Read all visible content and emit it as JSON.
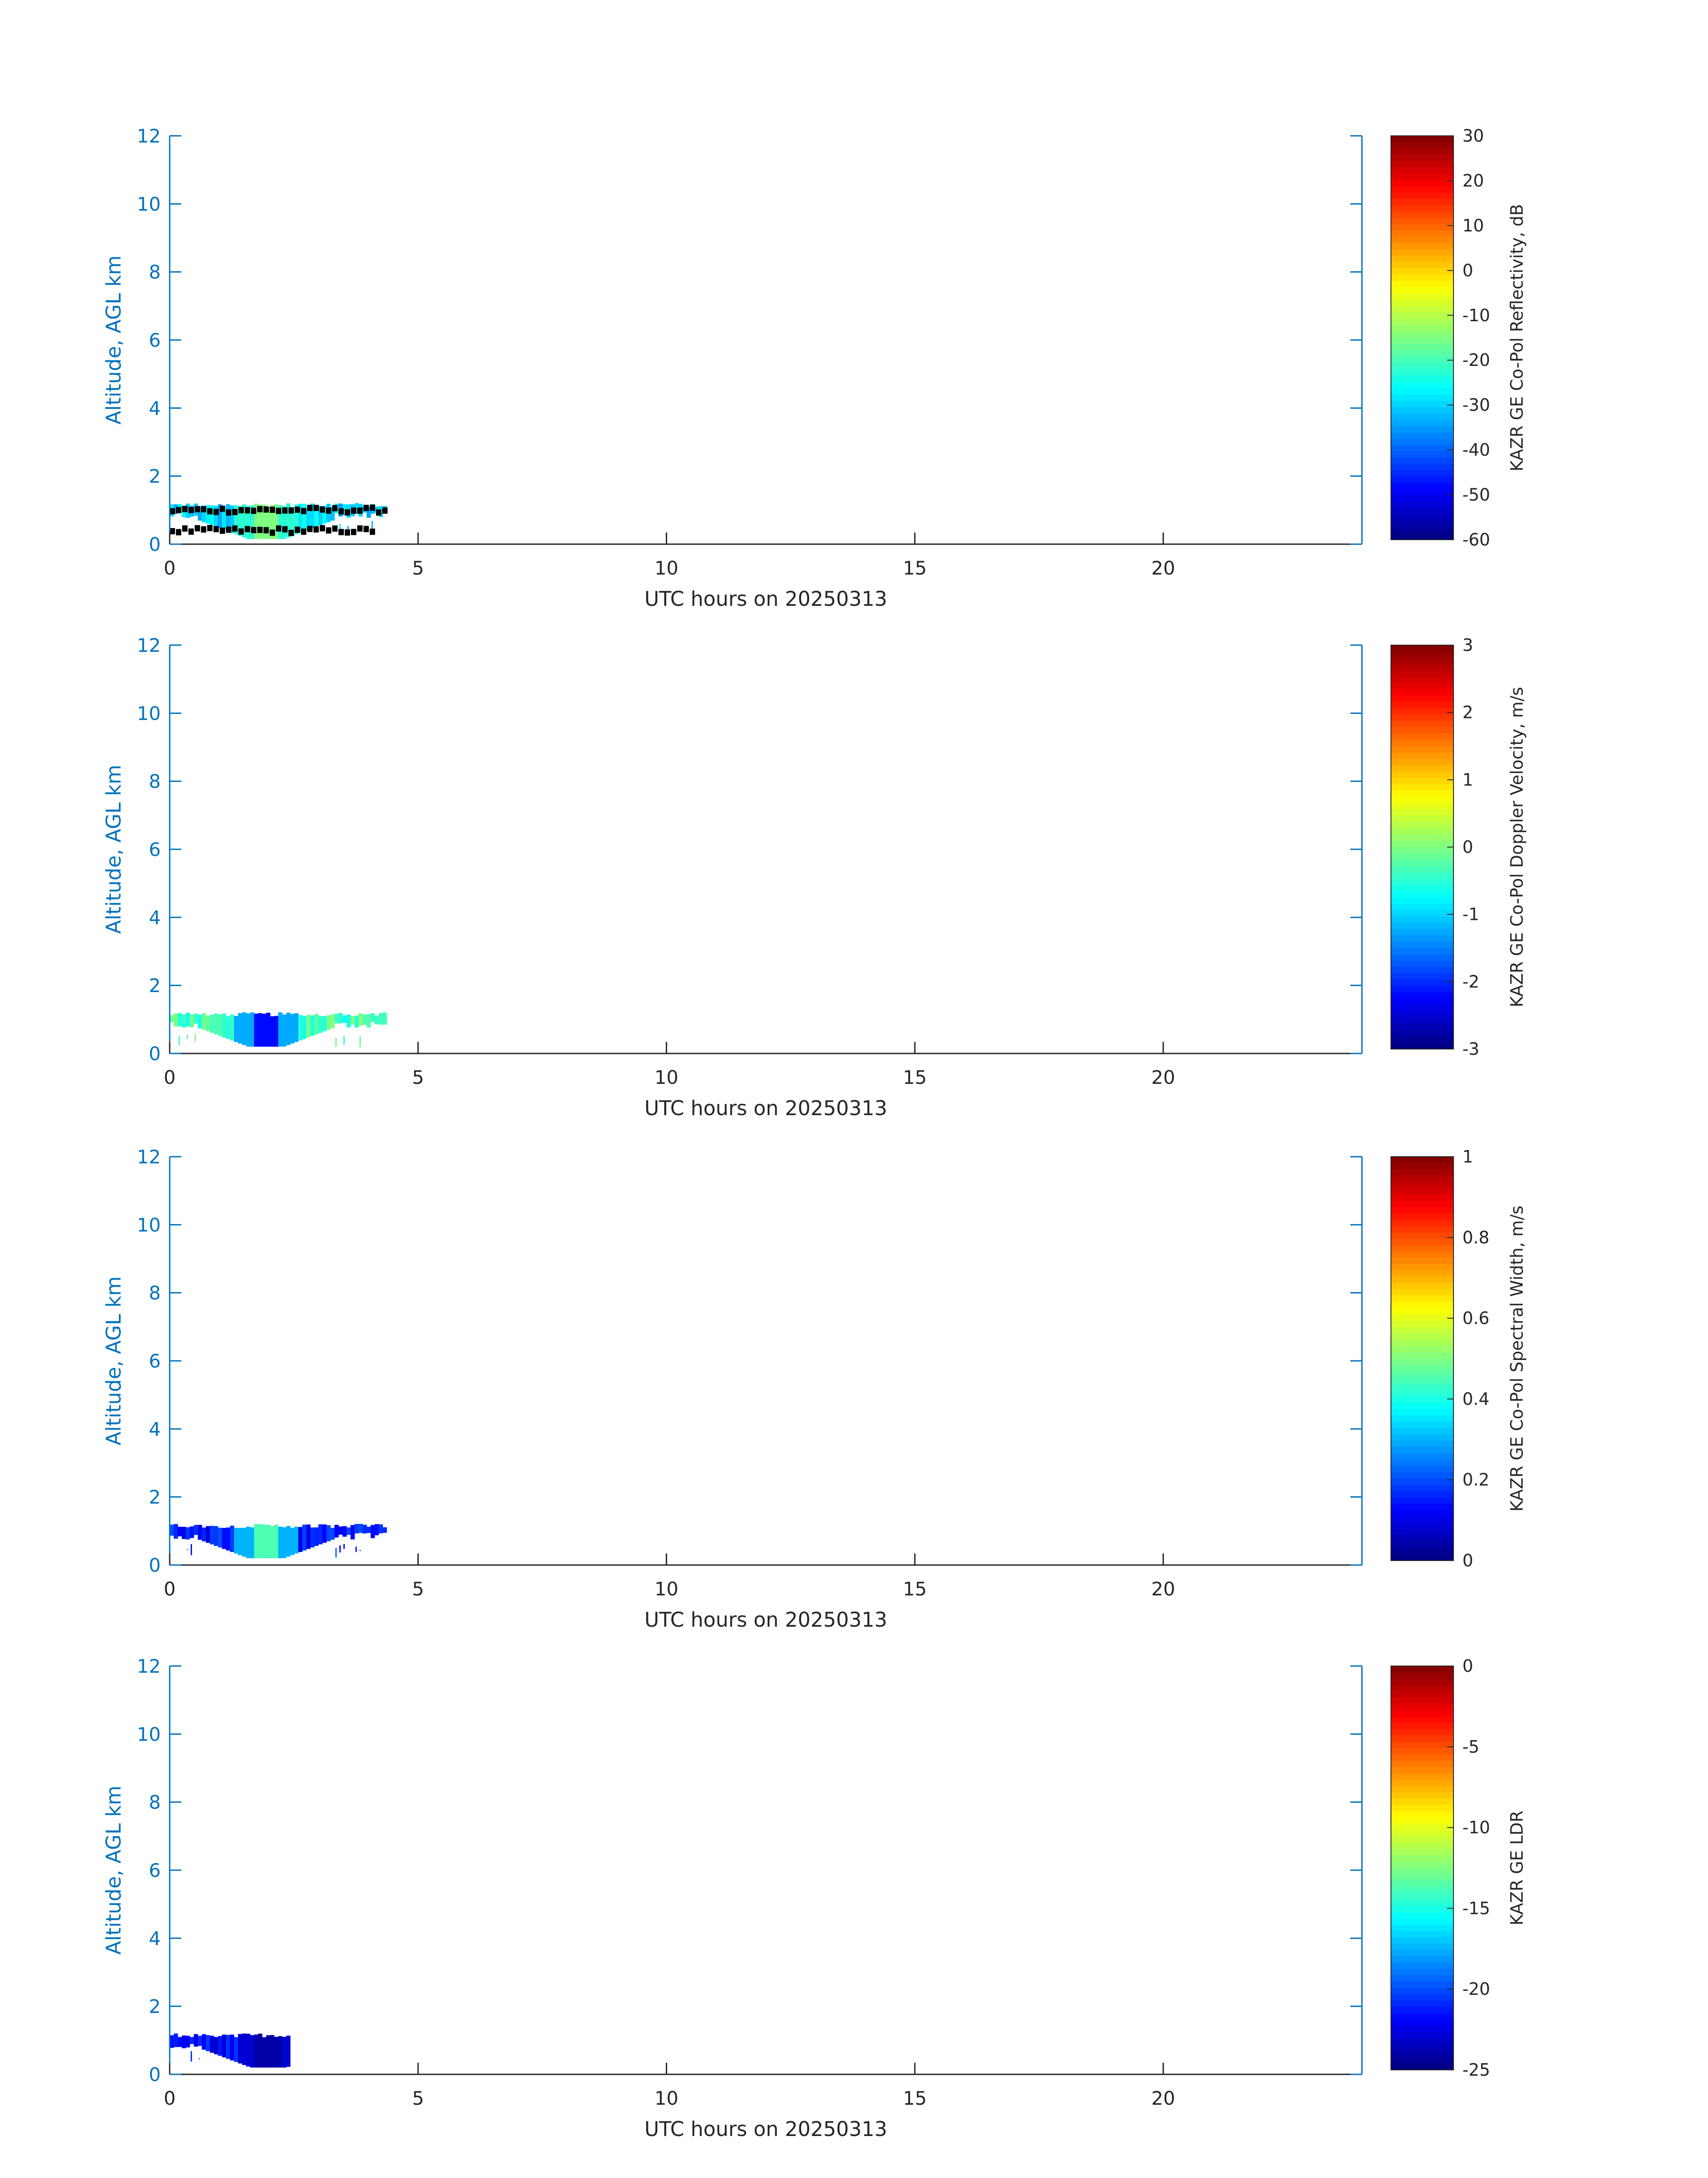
{
  "colors": {
    "axis_left": "#0072BD",
    "axis_bottom": "#262626",
    "colormap": "jet",
    "bad_data": "#000000"
  },
  "chart_data": [
    {
      "type": "heatmap",
      "xlabel": "UTC hours on 20250313",
      "ylabel": "Altitude, AGL km",
      "xlim": [
        0,
        24
      ],
      "ylim": [
        0,
        12
      ],
      "xticks": [
        "0",
        "5",
        "10",
        "15",
        "20"
      ],
      "yticks": [
        "0",
        "2",
        "4",
        "6",
        "8",
        "10",
        "12"
      ],
      "colorbar": {
        "label": "KAZR GE Co-Pol Reflectivity, dB",
        "range": [
          -60,
          30
        ],
        "ticks": [
          "30",
          "20",
          "10",
          "0",
          "-10",
          "-20",
          "-30",
          "-40",
          "-50",
          "-60"
        ]
      },
      "echo": {
        "x_range": [
          0,
          4.3
        ],
        "base_km": 0.15,
        "top_km": 1.15,
        "shaft_center_hr": 1.9,
        "typical_value": -30,
        "shaft_value": -15
      },
      "black_layers": [
        {
          "x_range": [
            0,
            4.3
          ],
          "alt_km": 1.0
        },
        {
          "x_range": [
            0,
            4.1
          ],
          "alt_km": 0.4
        }
      ]
    },
    {
      "type": "heatmap",
      "xlabel": "UTC hours on 20250313",
      "ylabel": "Altitude, AGL km",
      "xlim": [
        0,
        24
      ],
      "ylim": [
        0,
        12
      ],
      "xticks": [
        "0",
        "5",
        "10",
        "15",
        "20"
      ],
      "yticks": [
        "0",
        "2",
        "4",
        "6",
        "8",
        "10",
        "12"
      ],
      "colorbar": {
        "label": "KAZR GE Co-Pol Doppler Velocity, m/s",
        "range": [
          -3,
          3
        ],
        "ticks": [
          "3",
          "2",
          "1",
          "0",
          "-1",
          "-2",
          "-3"
        ]
      },
      "echo": {
        "x_range": [
          0,
          4.3
        ],
        "base_km": 0.2,
        "top_km": 1.15,
        "shaft_center_hr": 1.9,
        "typical_value": -0.3,
        "shaft_value": -2.2
      }
    },
    {
      "type": "heatmap",
      "xlabel": "UTC hours on 20250313",
      "ylabel": "Altitude, AGL km",
      "xlim": [
        0,
        24
      ],
      "ylim": [
        0,
        12
      ],
      "xticks": [
        "0",
        "5",
        "10",
        "15",
        "20"
      ],
      "yticks": [
        "0",
        "2",
        "4",
        "6",
        "8",
        "10",
        "12"
      ],
      "colorbar": {
        "label": "KAZR GE Co-Pol Spectral Width, m/s",
        "range": [
          0,
          1
        ],
        "ticks": [
          "1",
          "0.8",
          "0.6",
          "0.4",
          "0.2",
          "0"
        ]
      },
      "echo": {
        "x_range": [
          0,
          4.3
        ],
        "base_km": 0.2,
        "top_km": 1.15,
        "shaft_center_hr": 1.9,
        "typical_value": 0.15,
        "shaft_value": 0.45
      }
    },
    {
      "type": "heatmap",
      "xlabel": "UTC hours on 20250313",
      "ylabel": "Altitude, AGL km",
      "xlim": [
        0,
        24
      ],
      "ylim": [
        0,
        12
      ],
      "xticks": [
        "0",
        "5",
        "10",
        "15",
        "20"
      ],
      "yticks": [
        "0",
        "2",
        "4",
        "6",
        "8",
        "10",
        "12"
      ],
      "colorbar": {
        "label": "KAZR GE LDR",
        "range": [
          -25,
          0
        ],
        "ticks": [
          "0",
          "-5",
          "-10",
          "-15",
          "-20",
          "-25"
        ]
      },
      "echo": {
        "x_range": [
          0,
          2.4
        ],
        "base_km": 0.2,
        "top_km": 1.15,
        "shaft_center_hr": 1.95,
        "typical_value": -22,
        "shaft_value": -24
      }
    }
  ]
}
